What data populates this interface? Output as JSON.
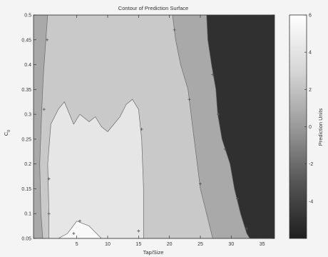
{
  "chart_data": {
    "type": "heatmap",
    "subtype": "filled-contour",
    "title": "Contour of Prediction Surface",
    "xlabel": "Tap/Size",
    "ylabel": "C₀",
    "ylabel_main": "C",
    "ylabel_sub": "0",
    "xlim": [
      -2,
      37
    ],
    "ylim": [
      0.05,
      0.5
    ],
    "xticks": [
      5,
      10,
      15,
      20,
      25,
      30,
      35
    ],
    "xtick_labels": [
      "5",
      "10",
      "15",
      "20",
      "25",
      "30",
      "35"
    ],
    "yticks": [
      0.05,
      0.1,
      0.15,
      0.2,
      0.25,
      0.3,
      0.35,
      0.4,
      0.45,
      0.5
    ],
    "ytick_labels": [
      "0.05",
      "0.1",
      "0.15",
      "0.2",
      "0.25",
      "0.3",
      "0.35",
      "0.4",
      "0.45",
      "0.5"
    ],
    "colorbar": {
      "label": "Prediction Units",
      "range": [
        -6,
        6
      ],
      "ticks": [
        6,
        4,
        2,
        0,
        -2,
        -4
      ],
      "tick_labels": [
        "6",
        "4",
        "2",
        "0",
        "-2",
        "-4"
      ],
      "colormap": "gray"
    },
    "levels": [
      {
        "name": "white-core",
        "value": 5,
        "color": "#f9f9f9",
        "boundary": [
          [
            2,
            0.05
          ],
          [
            3.5,
            0.06
          ],
          [
            5,
            0.085
          ],
          [
            7,
            0.075
          ],
          [
            9,
            0.05
          ]
        ]
      },
      {
        "name": "very-light",
        "value": 3,
        "color": "#e6e6e6",
        "boundary": [
          [
            0.5,
            0.05
          ],
          [
            0.5,
            0.1
          ],
          [
            0.3,
            0.2
          ],
          [
            0.8,
            0.28
          ],
          [
            2,
            0.31
          ],
          [
            3,
            0.325
          ],
          [
            4.5,
            0.28
          ],
          [
            5.5,
            0.3
          ],
          [
            7,
            0.285
          ],
          [
            8,
            0.295
          ],
          [
            9,
            0.275
          ],
          [
            10,
            0.265
          ],
          [
            11,
            0.28
          ],
          [
            12,
            0.295
          ],
          [
            13,
            0.32
          ],
          [
            14,
            0.33
          ],
          [
            15,
            0.31
          ],
          [
            15.5,
            0.25
          ],
          [
            15.8,
            0.15
          ],
          [
            15.8,
            0.05
          ]
        ]
      },
      {
        "name": "light",
        "value": 2,
        "color": "#c9c9c9",
        "boundary": [
          [
            -0.5,
            0.05
          ],
          [
            -0.8,
            0.1
          ],
          [
            -1.0,
            0.2
          ],
          [
            -0.7,
            0.3
          ],
          [
            -0.4,
            0.38
          ],
          [
            0,
            0.45
          ],
          [
            0.3,
            0.5
          ],
          [
            20.5,
            0.5
          ],
          [
            21,
            0.45
          ],
          [
            21.8,
            0.4
          ],
          [
            23,
            0.35
          ],
          [
            23.5,
            0.3
          ],
          [
            24,
            0.25
          ],
          [
            24.5,
            0.2
          ],
          [
            25,
            0.15
          ],
          [
            26,
            0.1
          ],
          [
            26.8,
            0.06
          ],
          [
            27,
            0.05
          ]
        ]
      },
      {
        "name": "mid",
        "value": 0,
        "color": "#a9a9a9",
        "boundary": [
          [
            -2,
            0.05
          ],
          [
            -2,
            0.5
          ],
          [
            26,
            0.5
          ],
          [
            26.2,
            0.45
          ],
          [
            26.8,
            0.4
          ],
          [
            27.5,
            0.35
          ],
          [
            27.8,
            0.3
          ],
          [
            28.5,
            0.25
          ],
          [
            29.8,
            0.2
          ],
          [
            30.5,
            0.15
          ],
          [
            31.5,
            0.1
          ],
          [
            32.5,
            0.06
          ],
          [
            33,
            0.05
          ]
        ]
      },
      {
        "name": "dark",
        "value": -4,
        "color": "#303030",
        "boundary": [
          [
            -2,
            0.05
          ],
          [
            -2,
            0.5
          ],
          [
            37,
            0.5
          ],
          [
            37,
            0.05
          ]
        ]
      }
    ],
    "contour_markers": [
      [
        0.5,
        0.17
      ],
      [
        0.5,
        0.1
      ],
      [
        5.5,
        0.085
      ],
      [
        15.5,
        0.27
      ],
      [
        -0.3,
        0.31
      ],
      [
        0.2,
        0.45
      ],
      [
        20.8,
        0.47
      ],
      [
        23.2,
        0.33
      ],
      [
        25,
        0.16
      ],
      [
        27,
        0.38
      ],
      [
        27.9,
        0.3
      ],
      [
        29,
        0.23
      ],
      [
        31,
        0.13
      ],
      [
        32.5,
        0.07
      ],
      [
        15,
        0.065
      ],
      [
        4.5,
        0.06
      ]
    ]
  }
}
